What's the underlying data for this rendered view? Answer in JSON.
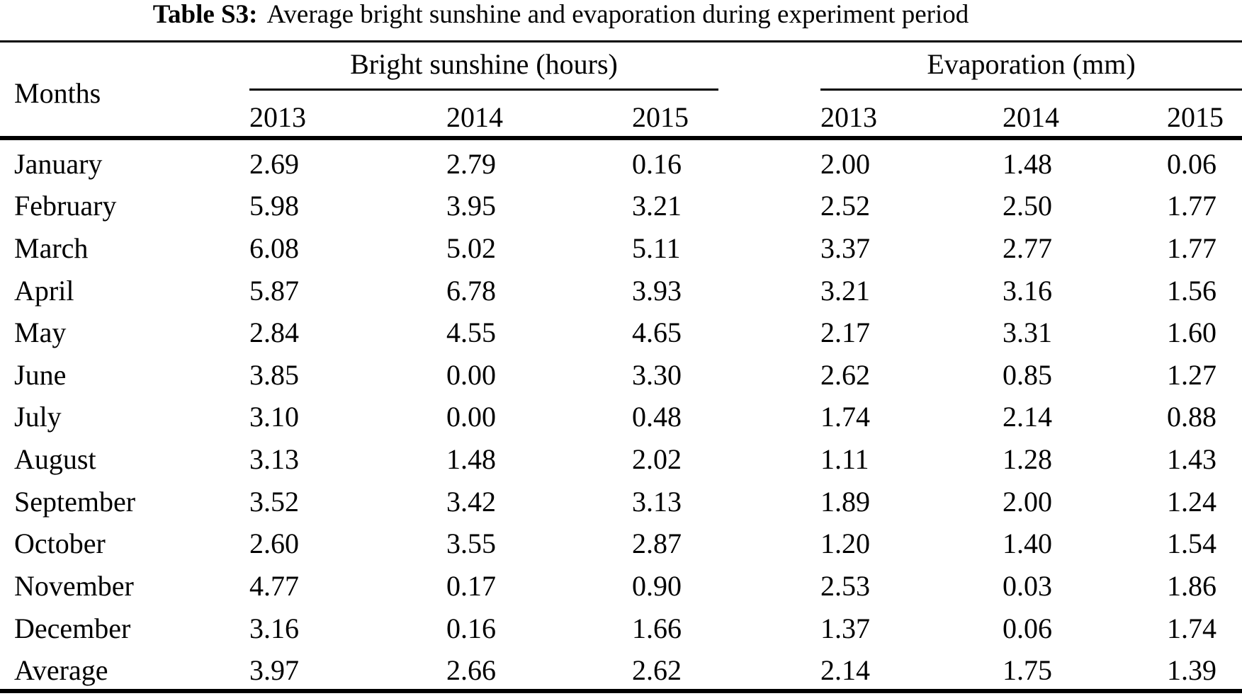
{
  "title": {
    "label": "Table S3:",
    "text": "Average bright sunshine and evaporation during experiment period"
  },
  "chart_data": {
    "type": "table",
    "title": "Table S3: Average bright sunshine and evaporation during experiment period",
    "row_header_label": "Months",
    "column_groups": [
      {
        "label": "Bright sunshine (hours)",
        "years": [
          "2013",
          "2014",
          "2015"
        ]
      },
      {
        "label": "Evaporation (mm)",
        "years": [
          "2013",
          "2014",
          "2015"
        ]
      }
    ],
    "rows": [
      {
        "label": "January",
        "values": [
          "2.69",
          "2.79",
          "0.16",
          "2.00",
          "1.48",
          "0.06"
        ]
      },
      {
        "label": "February",
        "values": [
          "5.98",
          "3.95",
          "3.21",
          "2.52",
          "2.50",
          "1.77"
        ]
      },
      {
        "label": "March",
        "values": [
          "6.08",
          "5.02",
          "5.11",
          "3.37",
          "2.77",
          "1.77"
        ]
      },
      {
        "label": "April",
        "values": [
          "5.87",
          "6.78",
          "3.93",
          "3.21",
          "3.16",
          "1.56"
        ]
      },
      {
        "label": "May",
        "values": [
          "2.84",
          "4.55",
          "4.65",
          "2.17",
          "3.31",
          "1.60"
        ]
      },
      {
        "label": "June",
        "values": [
          "3.85",
          "0.00",
          "3.30",
          "2.62",
          "0.85",
          "1.27"
        ]
      },
      {
        "label": "July",
        "values": [
          "3.10",
          "0.00",
          "0.48",
          "1.74",
          "2.14",
          "0.88"
        ]
      },
      {
        "label": "August",
        "values": [
          "3.13",
          "1.48",
          "2.02",
          "1.11",
          "1.28",
          "1.43"
        ]
      },
      {
        "label": "September",
        "values": [
          "3.52",
          "3.42",
          "3.13",
          "1.89",
          "2.00",
          "1.24"
        ]
      },
      {
        "label": "October",
        "values": [
          "2.60",
          "3.55",
          "2.87",
          "1.20",
          "1.40",
          "1.54"
        ]
      },
      {
        "label": "November",
        "values": [
          "4.77",
          "0.17",
          "0.90",
          "2.53",
          "0.03",
          "1.86"
        ]
      },
      {
        "label": "December",
        "values": [
          "3.16",
          "0.16",
          "1.66",
          "1.37",
          "0.06",
          "1.74"
        ]
      },
      {
        "label": "Average",
        "values": [
          "3.97",
          "2.66",
          "2.62",
          "2.14",
          "1.75",
          "1.39"
        ]
      }
    ]
  }
}
